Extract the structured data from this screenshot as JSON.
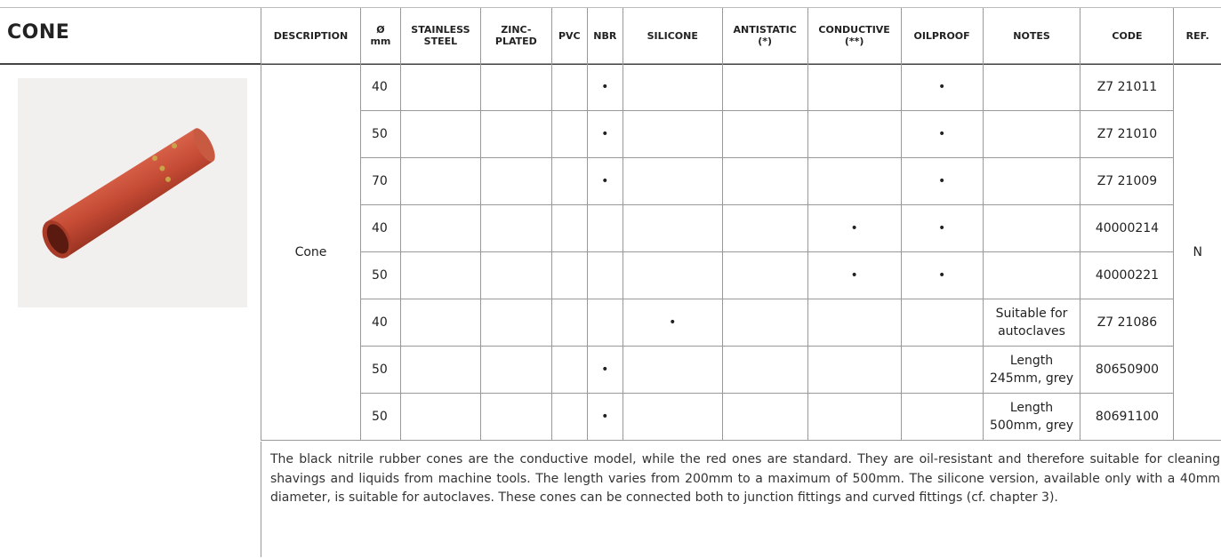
{
  "header": {
    "title": "CONE"
  },
  "table": {
    "headers": [
      "DESCRIPTION",
      "Ø\nmm",
      "STAINLESS\nSTEEL",
      "ZINC-\nPLATED",
      "PVC",
      "NBR",
      "SILICONE",
      "ANTISTATIC\n(*)",
      "CONDUCTIVE\n(**)",
      "OILPROOF",
      "NOTES",
      "CODE",
      "REF."
    ],
    "description": "Cone",
    "ref": "N",
    "rows": [
      {
        "diameter": 40,
        "nbr": "•",
        "oilproof": "•",
        "code": "Z7 21011"
      },
      {
        "diameter": 50,
        "nbr": "•",
        "oilproof": "•",
        "code": "Z7 21010"
      },
      {
        "diameter": 70,
        "nbr": "•",
        "oilproof": "•",
        "code": "Z7 21009"
      },
      {
        "diameter": 40,
        "conductive": "•",
        "oilproof": "•",
        "code": "40000214"
      },
      {
        "diameter": 50,
        "conductive": "•",
        "oilproof": "•",
        "code": "40000221"
      },
      {
        "diameter": 40,
        "silicone": "•",
        "notes": "Suitable for\nautoclaves",
        "code": "Z7 21086"
      },
      {
        "diameter": 50,
        "nbr": "•",
        "notes": "Length\n245mm, grey",
        "code": "80650900"
      },
      {
        "diameter": 50,
        "nbr": "•",
        "notes": "Length\n500mm, grey",
        "code": "80691100"
      }
    ]
  },
  "note": "The black nitrile rubber cones are the conductive model, while the red ones are standard. They are oil-resistant and therefore suitable for cleaning shavings and liquids from machine tools. The length varies from 200mm to a maximum of 500mm. The silicone version, available only with a 40mm diameter, is suitable for autoclaves. These cones can be connected both to junction fittings and curved fittings (cf. chapter 3)."
}
